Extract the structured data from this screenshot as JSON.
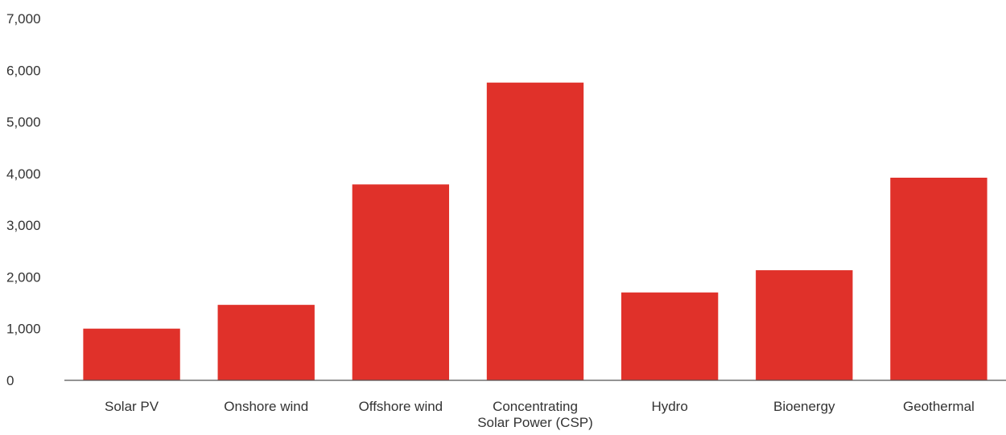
{
  "chart_data": {
    "type": "bar",
    "title": "",
    "xlabel": "",
    "ylabel": "",
    "categories": [
      [
        "Solar PV"
      ],
      [
        "Onshore wind"
      ],
      [
        "Offshore wind"
      ],
      [
        "Concentrating",
        "Solar Power (CSP)"
      ],
      [
        "Hydro"
      ],
      [
        "Bioenergy"
      ],
      [
        "Geothermal"
      ]
    ],
    "values": [
      1000,
      1460,
      3790,
      5760,
      1700,
      2130,
      3920
    ],
    "ylim": [
      0,
      7000
    ],
    "yticks": [
      0,
      1000,
      2000,
      3000,
      4000,
      5000,
      6000,
      7000
    ],
    "ytick_labels": [
      "0",
      "1,000",
      "2,000",
      "3,000",
      "4,000",
      "5,000",
      "6,000",
      "7,000"
    ],
    "grid": false,
    "legend": "none",
    "bar_color": "#e0312a",
    "axis_color": "#555555"
  }
}
